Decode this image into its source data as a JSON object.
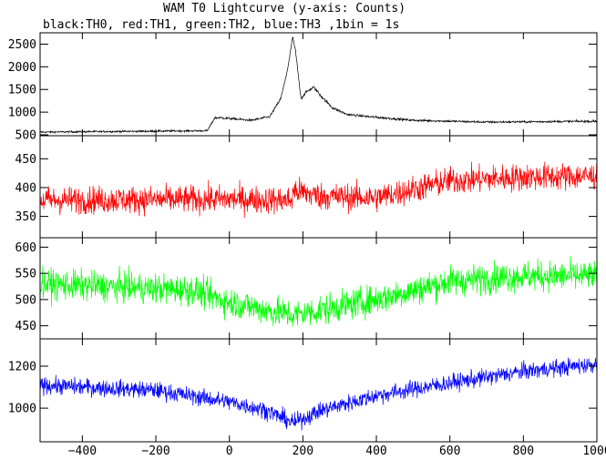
{
  "chart_data": {
    "type": "line",
    "title": "WAM T0 Lightcurve (y-axis: Counts)",
    "subtitle": "black:TH0, red:TH1, green:TH2, blue:TH3 ,1bin = 1s",
    "xlabel": "",
    "ylabel": "",
    "xlim": [
      -515,
      1000
    ],
    "x_ticks": [
      -400,
      -200,
      0,
      200,
      400,
      600,
      800,
      1000
    ],
    "x_tick_labels": [
      "−400",
      "−200",
      "0",
      "200",
      "400",
      "600",
      "800",
      "1000"
    ],
    "grid": false,
    "panels": [
      {
        "name": "TH0",
        "color": "#000000",
        "ylim": [
          480,
          2750
        ],
        "y_ticks": [
          500,
          1000,
          1500,
          2000,
          2500
        ],
        "noise": 18,
        "series": {
          "x": [
            -515,
            -60,
            -40,
            -30,
            0,
            60,
            110,
            140,
            160,
            172,
            180,
            195,
            210,
            230,
            250,
            280,
            320,
            380,
            500,
            700,
            1000
          ],
          "values": [
            560,
            590,
            870,
            880,
            860,
            820,
            900,
            1300,
            2000,
            2650,
            2350,
            1300,
            1450,
            1550,
            1350,
            1100,
            950,
            900,
            820,
            780,
            800
          ]
        }
      },
      {
        "name": "TH1",
        "color": "#ff0000",
        "ylim": [
          313,
          490
        ],
        "y_ticks": [
          350,
          400,
          450
        ],
        "noise": 20,
        "series": {
          "x": [
            -515,
            0,
            170,
            175,
            250,
            400,
            600,
            800,
            1000
          ],
          "values": [
            378,
            380,
            378,
            395,
            385,
            382,
            412,
            418,
            420
          ]
        }
      },
      {
        "name": "TH2",
        "color": "#00ff00",
        "ylim": [
          425,
          618
        ],
        "y_ticks": [
          450,
          500,
          550,
          600
        ],
        "noise": 24,
        "series": {
          "x": [
            -515,
            -100,
            0,
            100,
            175,
            250,
            400,
            600,
            800,
            1000
          ],
          "values": [
            530,
            518,
            495,
            480,
            470,
            480,
            500,
            535,
            545,
            545
          ]
        }
      },
      {
        "name": "TH3",
        "color": "#0000ff",
        "ylim": [
          840,
          1330
        ],
        "y_ticks": [
          1000,
          1200
        ],
        "noise": 34,
        "series": {
          "x": [
            -515,
            -200,
            0,
            100,
            175,
            250,
            400,
            600,
            800,
            1000
          ],
          "values": [
            1110,
            1085,
            1030,
            990,
            930,
            990,
            1060,
            1120,
            1175,
            1210
          ]
        }
      }
    ]
  }
}
